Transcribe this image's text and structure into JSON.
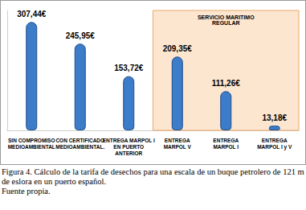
{
  "chart_data": {
    "type": "bar",
    "categories": [
      "SIN COMPROMISO\nMEDIOAMBIENTAL",
      "CON CERTIFICADO\nMEDIOAMBIENTAL.",
      "ENTREGA MARPOL I\nEN PUERTO\nANTERIOR",
      "ENTREGA\nMARPOL V",
      "ENTREGA\nMARPOL I",
      "ENTREGA\nMARPOL I y V"
    ],
    "values": [
      307.44,
      245.95,
      153.72,
      209.35,
      111.26,
      13.18
    ],
    "value_labels": [
      "307,44€",
      "245,95€",
      "153,72€",
      "209,35€",
      "111,26€",
      "13,18€"
    ],
    "color": "#3d7cc9",
    "ylim": [
      0,
      340
    ],
    "tick_labels": "x",
    "grid": false,
    "data_labels": true,
    "annotations": [
      {
        "text": "SERVICIO MARITIMO\nREGULAR",
        "from": "ENTREGA\nMARPOL V",
        "to": "ENTREGA\nMARPOL I y V"
      }
    ],
    "caption": [
      "Figura 4. Cálculo de la tarifa de desechos para una escala de un buque petrolero de 121 m de eslora en un puerto español.",
      "Fuente propia."
    ]
  }
}
